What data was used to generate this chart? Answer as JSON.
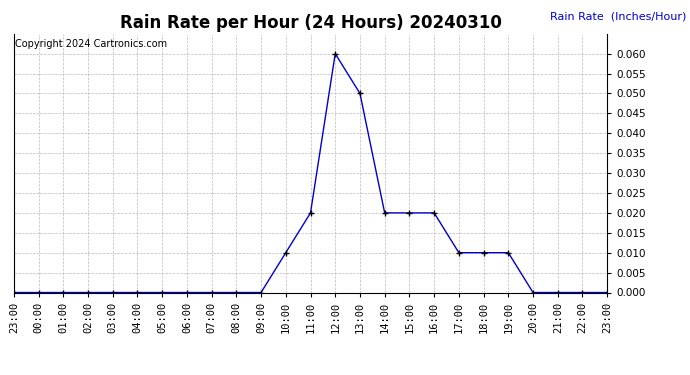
{
  "title": "Rain Rate per Hour (24 Hours) 20240310",
  "copyright_text": "Copyright 2024 Cartronics.com",
  "ylabel": "Rain Rate  (Inches/Hour)",
  "line_color": "#0000CC",
  "marker_color": "#000000",
  "background_color": "#ffffff",
  "grid_color": "#bbbbbb",
  "ylim": [
    0.0,
    0.065
  ],
  "yticks": [
    0.0,
    0.005,
    0.01,
    0.015,
    0.02,
    0.025,
    0.03,
    0.035,
    0.04,
    0.045,
    0.05,
    0.055,
    0.06
  ],
  "x_labels": [
    "23:00",
    "00:00",
    "01:00",
    "02:00",
    "03:00",
    "04:00",
    "05:00",
    "06:00",
    "07:00",
    "08:00",
    "09:00",
    "10:00",
    "11:00",
    "12:00",
    "13:00",
    "14:00",
    "15:00",
    "16:00",
    "17:00",
    "18:00",
    "19:00",
    "20:00",
    "21:00",
    "22:00",
    "23:00"
  ],
  "x_values": [
    0,
    1,
    2,
    3,
    4,
    5,
    6,
    7,
    8,
    9,
    10,
    11,
    12,
    13,
    14,
    15,
    16,
    17,
    18,
    19,
    20,
    21,
    22,
    23,
    24
  ],
  "y_values": [
    0.0,
    0.0,
    0.0,
    0.0,
    0.0,
    0.0,
    0.0,
    0.0,
    0.0,
    0.0,
    0.0,
    0.01,
    0.02,
    0.06,
    0.05,
    0.02,
    0.02,
    0.02,
    0.01,
    0.01,
    0.01,
    0.0,
    0.0,
    0.0,
    0.0
  ],
  "title_fontsize": 12,
  "tick_fontsize": 7.5,
  "copyright_fontsize": 7,
  "ylabel_fontsize": 8
}
